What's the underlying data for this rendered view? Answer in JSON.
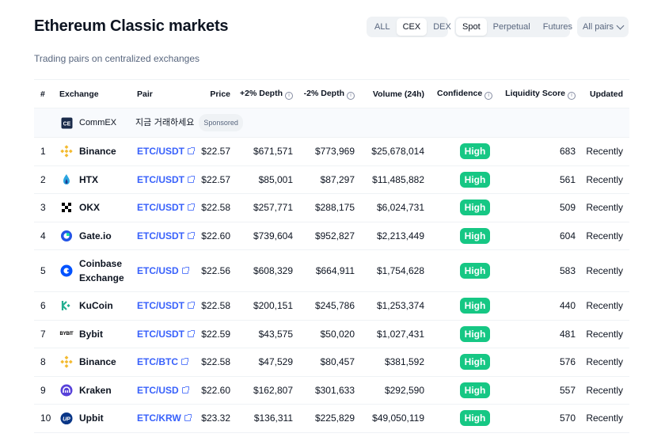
{
  "header": {
    "title": "Ethereum Classic markets",
    "subtitle": "Trading pairs on centralized exchanges"
  },
  "filters": {
    "type_options": [
      "ALL",
      "CEX",
      "DEX"
    ],
    "type_selected": "CEX",
    "market_options": [
      "Spot",
      "Perpetual",
      "Futures"
    ],
    "market_selected": "Spot",
    "pairs_label": "All pairs"
  },
  "table": {
    "columns": {
      "num": "#",
      "exchange": "Exchange",
      "pair": "Pair",
      "price": "Price",
      "plus_depth": "+2% Depth",
      "minus_depth": "-2% Depth",
      "volume": "Volume (24h)",
      "confidence": "Confidence",
      "liquidity": "Liquidity Score",
      "updated": "Updated"
    },
    "sponsored": {
      "exchange": "CommEX",
      "text": "지금 거래하세요",
      "badge": "Sponsored"
    },
    "rows": [
      {
        "num": "1",
        "exchange": "Binance",
        "pair": "ETC/USDT",
        "price": "$22.57",
        "plus_depth": "$671,571",
        "minus_depth": "$773,969",
        "volume": "$25,678,014",
        "confidence": "High",
        "liquidity": "683",
        "updated": "Recently"
      },
      {
        "num": "2",
        "exchange": "HTX",
        "pair": "ETC/USDT",
        "price": "$22.57",
        "plus_depth": "$85,001",
        "minus_depth": "$87,297",
        "volume": "$11,485,882",
        "confidence": "High",
        "liquidity": "561",
        "updated": "Recently"
      },
      {
        "num": "3",
        "exchange": "OKX",
        "pair": "ETC/USDT",
        "price": "$22.58",
        "plus_depth": "$257,771",
        "minus_depth": "$288,175",
        "volume": "$6,024,731",
        "confidence": "High",
        "liquidity": "509",
        "updated": "Recently"
      },
      {
        "num": "4",
        "exchange": "Gate.io",
        "pair": "ETC/USDT",
        "price": "$22.60",
        "plus_depth": "$739,604",
        "minus_depth": "$952,827",
        "volume": "$2,213,449",
        "confidence": "High",
        "liquidity": "604",
        "updated": "Recently"
      },
      {
        "num": "5",
        "exchange": "Coinbase Exchange",
        "pair": "ETC/USD",
        "price": "$22.56",
        "plus_depth": "$608,329",
        "minus_depth": "$664,911",
        "volume": "$1,754,628",
        "confidence": "High",
        "liquidity": "583",
        "updated": "Recently"
      },
      {
        "num": "6",
        "exchange": "KuCoin",
        "pair": "ETC/USDT",
        "price": "$22.58",
        "plus_depth": "$200,151",
        "minus_depth": "$245,786",
        "volume": "$1,253,374",
        "confidence": "High",
        "liquidity": "440",
        "updated": "Recently"
      },
      {
        "num": "7",
        "exchange": "Bybit",
        "pair": "ETC/USDT",
        "price": "$22.59",
        "plus_depth": "$43,575",
        "minus_depth": "$50,020",
        "volume": "$1,027,431",
        "confidence": "High",
        "liquidity": "481",
        "updated": "Recently"
      },
      {
        "num": "8",
        "exchange": "Binance",
        "pair": "ETC/BTC",
        "price": "$22.58",
        "plus_depth": "$47,529",
        "minus_depth": "$80,457",
        "volume": "$381,592",
        "confidence": "High",
        "liquidity": "576",
        "updated": "Recently"
      },
      {
        "num": "9",
        "exchange": "Kraken",
        "pair": "ETC/USD",
        "price": "$22.60",
        "plus_depth": "$162,807",
        "minus_depth": "$301,633",
        "volume": "$292,590",
        "confidence": "High",
        "liquidity": "557",
        "updated": "Recently"
      },
      {
        "num": "10",
        "exchange": "Upbit",
        "pair": "ETC/KRW",
        "price": "$23.32",
        "plus_depth": "$136,311",
        "minus_depth": "$225,829",
        "volume": "$49,050,119",
        "confidence": "High",
        "liquidity": "570",
        "updated": "Recently"
      }
    ]
  },
  "logo_marks": {
    "bybit": "BYBIT",
    "upbit": "UP"
  },
  "colors": {
    "accent_link": "#3861fb",
    "confidence_high": "#16c784",
    "text_primary": "#0d1421",
    "text_secondary": "#58667e"
  },
  "icons": [
    "info-icon",
    "external-link-icon",
    "chevron-down-icon",
    "binance-logo-icon",
    "htx-logo-icon",
    "okx-logo-icon",
    "gateio-logo-icon",
    "coinbase-logo-icon",
    "kucoin-logo-icon",
    "bybit-logo-icon",
    "kraken-logo-icon",
    "upbit-logo-icon",
    "commex-logo-icon"
  ]
}
